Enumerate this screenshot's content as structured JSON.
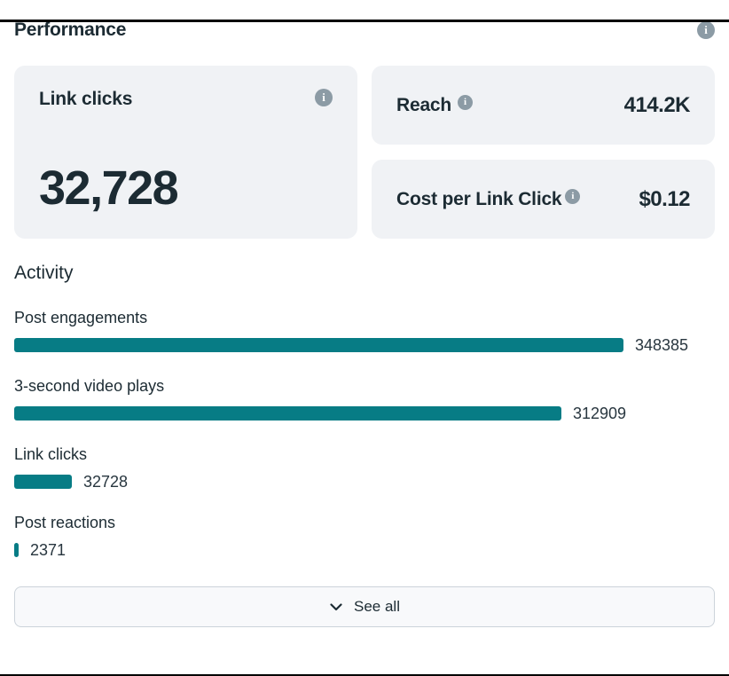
{
  "header": {
    "title": "Performance"
  },
  "metrics": {
    "link_clicks": {
      "label": "Link clicks",
      "value": "32,728"
    },
    "reach": {
      "label": "Reach",
      "value": "414.2K"
    },
    "cost_per_link_click": {
      "label": "Cost per Link Click",
      "value": "$0.12"
    }
  },
  "activity": {
    "title": "Activity",
    "see_all_label": "See all"
  },
  "icons": {
    "info_glyph": "i"
  },
  "colors": {
    "bar_teal": "#077c85",
    "card_background": "#f0f2f5",
    "text_dark": "#1c2b33",
    "info_icon_gray": "#8c9ba5"
  },
  "chart_data": {
    "type": "bar",
    "orientation": "horizontal",
    "title": "Activity",
    "categories": [
      "Post engagements",
      "3-second video plays",
      "Link clicks",
      "Post reactions"
    ],
    "values": [
      348385,
      312909,
      32728,
      2371
    ],
    "value_labels": [
      "348385",
      "312909",
      "32728",
      "2371"
    ],
    "xlim": [
      0,
      348385
    ],
    "bar_color": "#077c85",
    "grid": false,
    "value_label_position": "right-of-bar"
  }
}
